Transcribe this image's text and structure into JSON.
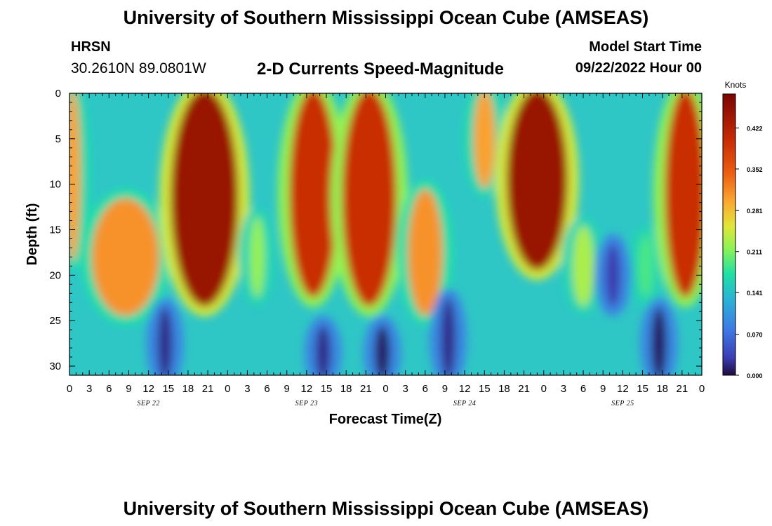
{
  "page": {
    "title": "University of Southern Mississippi Ocean Cube (AMSEAS)",
    "footer_title": "University of Southern Mississippi Ocean Cube (AMSEAS)",
    "station_name": "HRSN",
    "station_coords": "30.2610N  89.0801W",
    "subtitle": "2-D Currents Speed-Magnitude",
    "model_start_label": "Model Start Time",
    "model_start_value": "09/22/2022 Hour 00"
  },
  "chart_data": {
    "type": "heatmap",
    "title": "2-D Currents Speed-Magnitude",
    "xlabel": "Forecast Time(Z)",
    "ylabel": "Depth (ft)",
    "x_range_hours": [
      0,
      96
    ],
    "y_range_ft": [
      0,
      31
    ],
    "y_reversed": true,
    "y_ticks": [
      0,
      5,
      10,
      15,
      20,
      25,
      30
    ],
    "x_ticks": [
      {
        "hour": 0,
        "label": "0"
      },
      {
        "hour": 3,
        "label": "3"
      },
      {
        "hour": 6,
        "label": "6"
      },
      {
        "hour": 9,
        "label": "9"
      },
      {
        "hour": 12,
        "label": "12"
      },
      {
        "hour": 15,
        "label": "15"
      },
      {
        "hour": 18,
        "label": "18"
      },
      {
        "hour": 21,
        "label": "21"
      },
      {
        "hour": 24,
        "label": "0"
      },
      {
        "hour": 27,
        "label": "3"
      },
      {
        "hour": 30,
        "label": "6"
      },
      {
        "hour": 33,
        "label": "9"
      },
      {
        "hour": 36,
        "label": "12"
      },
      {
        "hour": 39,
        "label": "15"
      },
      {
        "hour": 42,
        "label": "18"
      },
      {
        "hour": 45,
        "label": "21"
      },
      {
        "hour": 48,
        "label": "0"
      },
      {
        "hour": 51,
        "label": "3"
      },
      {
        "hour": 54,
        "label": "6"
      },
      {
        "hour": 57,
        "label": "9"
      },
      {
        "hour": 60,
        "label": "12"
      },
      {
        "hour": 63,
        "label": "15"
      },
      {
        "hour": 66,
        "label": "18"
      },
      {
        "hour": 69,
        "label": "21"
      },
      {
        "hour": 72,
        "label": "0"
      },
      {
        "hour": 75,
        "label": "3"
      },
      {
        "hour": 78,
        "label": "6"
      },
      {
        "hour": 81,
        "label": "9"
      },
      {
        "hour": 84,
        "label": "12"
      },
      {
        "hour": 87,
        "label": "15"
      },
      {
        "hour": 90,
        "label": "18"
      },
      {
        "hour": 93,
        "label": "21"
      },
      {
        "hour": 96,
        "label": "0"
      }
    ],
    "date_labels": [
      {
        "hour": 12,
        "label": "SEP 22"
      },
      {
        "hour": 36,
        "label": "SEP 23"
      },
      {
        "hour": 60,
        "label": "SEP 24"
      },
      {
        "hour": 84,
        "label": "SEP 25"
      }
    ],
    "colorbar": {
      "unit": "Knots",
      "min": 0.0,
      "max": 0.48,
      "ticks": [
        "0.422",
        "0.352",
        "0.281",
        "0.211",
        "0.141",
        "0.070",
        "0.000"
      ]
    },
    "features": [
      {
        "kind": "high-speed-column",
        "t_hours": [
          0,
          1
        ],
        "depth_ft": [
          0,
          18
        ],
        "approx_knots": 0.3
      },
      {
        "kind": "high-speed-lobe",
        "t_hours": [
          4,
          13
        ],
        "depth_ft": [
          12,
          24
        ],
        "approx_knots": 0.31
      },
      {
        "kind": "high-speed-column",
        "t_hours": [
          16,
          25
        ],
        "depth_ft": [
          0,
          23
        ],
        "approx_knots": 0.45
      },
      {
        "kind": "high-speed-lobe",
        "t_hours": [
          28,
          29
        ],
        "depth_ft": [
          14,
          22
        ],
        "approx_knots": 0.22
      },
      {
        "kind": "high-speed-column",
        "t_hours": [
          34,
          40
        ],
        "depth_ft": [
          0,
          22
        ],
        "approx_knots": 0.4
      },
      {
        "kind": "high-speed-column",
        "t_hours": [
          42,
          49
        ],
        "depth_ft": [
          0,
          23
        ],
        "approx_knots": 0.4
      },
      {
        "kind": "high-speed-lobe",
        "t_hours": [
          52,
          56
        ],
        "depth_ft": [
          11,
          24
        ],
        "approx_knots": 0.31
      },
      {
        "kind": "high-speed-column",
        "t_hours": [
          62,
          64
        ],
        "depth_ft": [
          0,
          10
        ],
        "approx_knots": 0.3
      },
      {
        "kind": "high-speed-column",
        "t_hours": [
          67,
          75
        ],
        "depth_ft": [
          0,
          19
        ],
        "approx_knots": 0.45
      },
      {
        "kind": "high-speed-lobe",
        "t_hours": [
          77,
          79
        ],
        "depth_ft": [
          15,
          23
        ],
        "approx_knots": 0.23
      },
      {
        "kind": "high-speed-lobe",
        "t_hours": [
          87,
          88
        ],
        "depth_ft": [
          16,
          22
        ],
        "approx_knots": 0.19
      },
      {
        "kind": "high-speed-column",
        "t_hours": [
          91,
          96
        ],
        "depth_ft": [
          0,
          22
        ],
        "approx_knots": 0.4
      },
      {
        "kind": "low-speed-slack",
        "t_hours": [
          14,
          15
        ],
        "depth_ft": [
          24,
          31
        ],
        "approx_knots": 0.02
      },
      {
        "kind": "low-speed-slack",
        "t_hours": [
          38,
          39
        ],
        "depth_ft": [
          26,
          31
        ],
        "approx_knots": 0.02
      },
      {
        "kind": "low-speed-slack",
        "t_hours": [
          47,
          48
        ],
        "depth_ft": [
          26,
          31
        ],
        "approx_knots": 0.01
      },
      {
        "kind": "low-speed-slack",
        "t_hours": [
          57,
          58
        ],
        "depth_ft": [
          23,
          31
        ],
        "approx_knots": 0.02
      },
      {
        "kind": "low-speed-slack",
        "t_hours": [
          82,
          83
        ],
        "depth_ft": [
          17,
          23
        ],
        "approx_knots": 0.03
      },
      {
        "kind": "low-speed-slack",
        "t_hours": [
          89,
          90
        ],
        "depth_ft": [
          24,
          31
        ],
        "approx_knots": 0.01
      }
    ]
  }
}
